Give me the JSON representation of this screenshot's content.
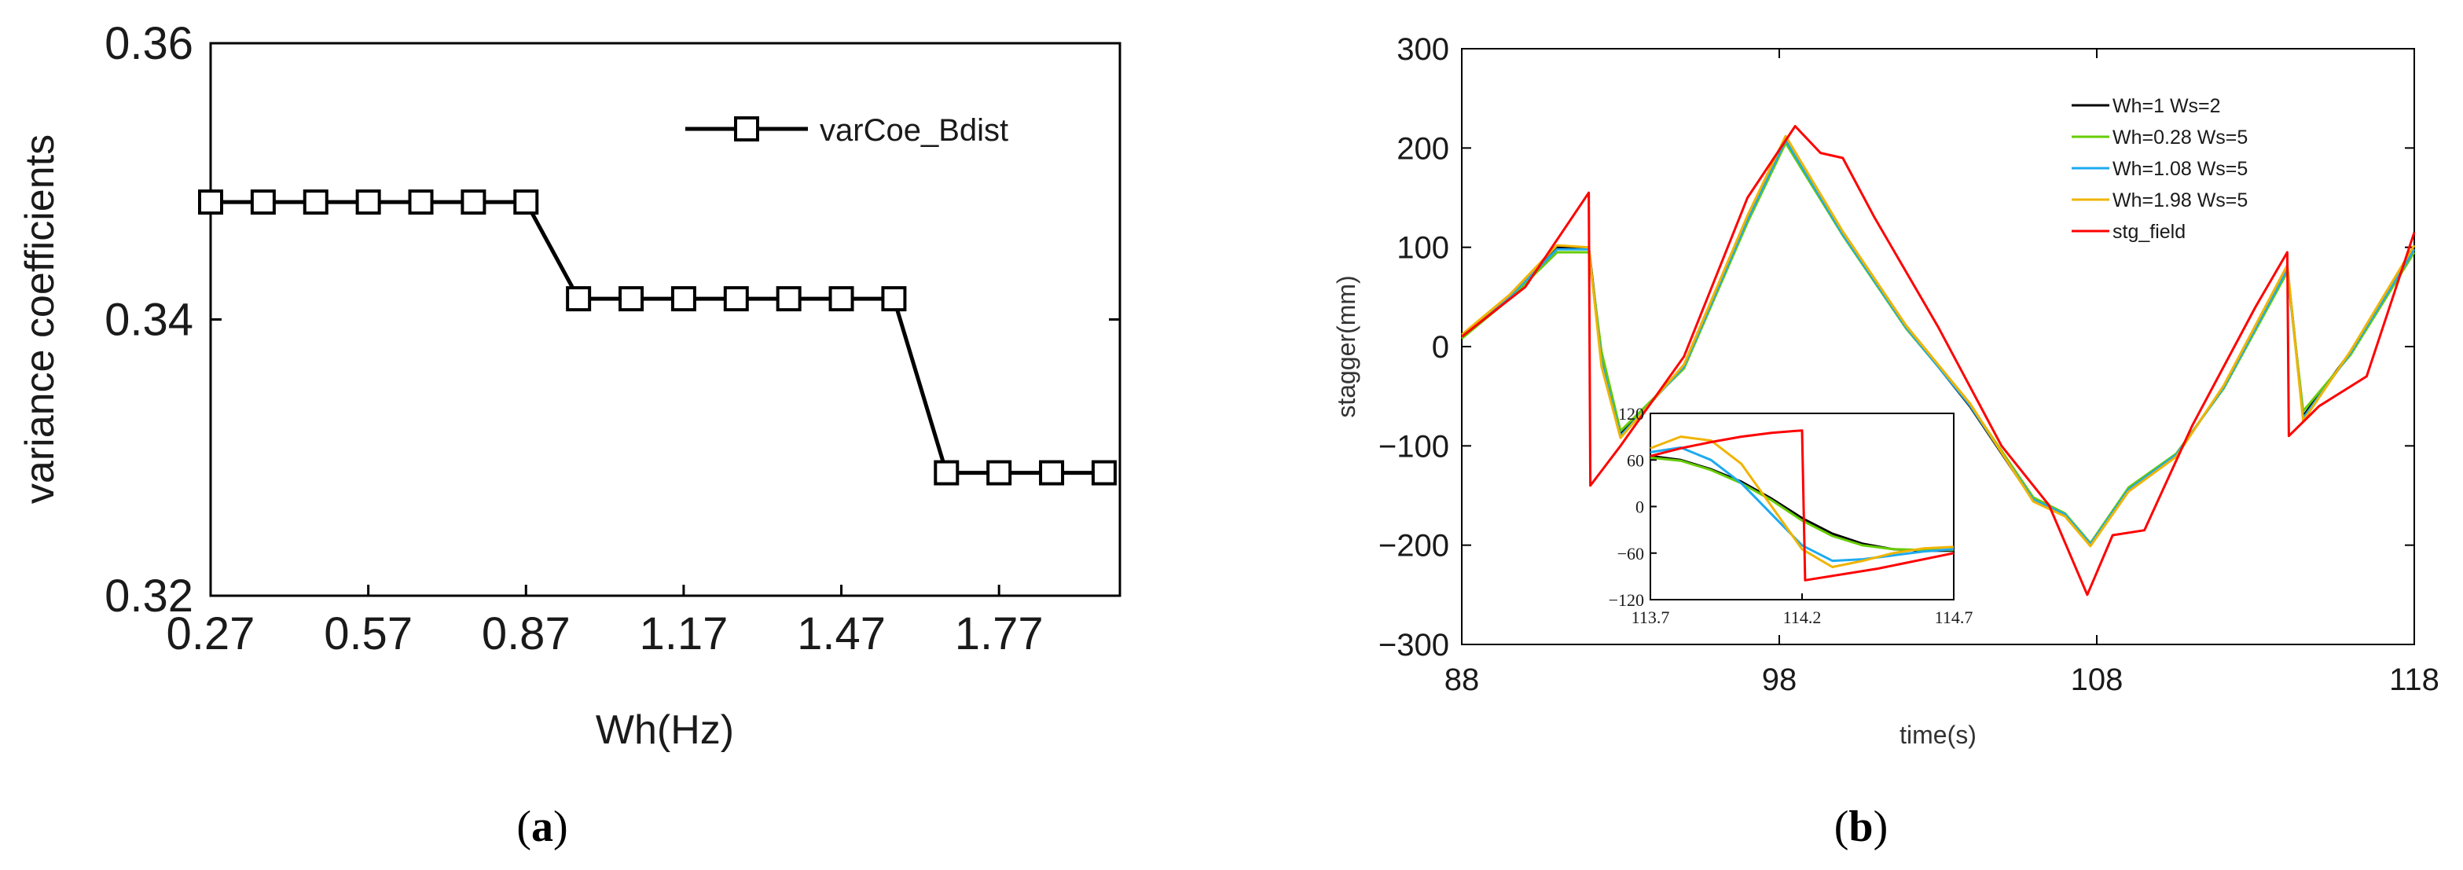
{
  "chart_data": [
    {
      "type": "line",
      "caption_open": "(",
      "caption_letter": "a",
      "caption_close": ")",
      "xlabel": "Wh(Hz)",
      "ylabel": "variance coefficients",
      "xlim": [
        0.27,
        2.0
      ],
      "ylim": [
        0.32,
        0.36
      ],
      "xticks": [
        "0.27",
        "0.57",
        "0.87",
        "1.17",
        "1.47",
        "1.77"
      ],
      "yticks": [
        "0.32",
        "0.34",
        "0.36"
      ],
      "legend_position": "top-right",
      "grid": false,
      "series": [
        {
          "name": "varCoe_Bdist",
          "color": "#000000",
          "marker": "square",
          "x": [
            0.27,
            0.37,
            0.47,
            0.57,
            0.67,
            0.77,
            0.87,
            0.97,
            1.07,
            1.17,
            1.27,
            1.37,
            1.47,
            1.57,
            1.67,
            1.77,
            1.87,
            1.97
          ],
          "y": [
            0.3485,
            0.3485,
            0.3485,
            0.3485,
            0.3485,
            0.3485,
            0.3485,
            0.3415,
            0.3415,
            0.3415,
            0.3415,
            0.3415,
            0.3415,
            0.3415,
            0.3289,
            0.3289,
            0.3289,
            0.3289
          ]
        }
      ]
    },
    {
      "type": "line",
      "caption_open": "(",
      "caption_letter": "b",
      "caption_close": ")",
      "xlabel": "time(s)",
      "ylabel": "stagger(mm)",
      "xlim": [
        88,
        118
      ],
      "ylim": [
        -300,
        300
      ],
      "xticks": [
        "88",
        "98",
        "108",
        "118"
      ],
      "yticks": [
        "300",
        "200",
        "100",
        "0",
        "−100",
        "−200",
        "−300"
      ],
      "legend_position": "top-right",
      "grid": false,
      "series": [
        {
          "name": "Wh=1 Ws=2",
          "color": "#000000",
          "x": [
            88,
            89.5,
            91,
            92,
            92.4,
            93,
            95,
            97,
            98.2,
            100,
            102,
            104,
            106,
            107,
            107.8,
            109,
            110.5,
            112,
            114,
            114.5,
            116,
            118
          ],
          "y": [
            10,
            50,
            100,
            100,
            -10,
            -88,
            -20,
            130,
            210,
            115,
            20,
            -60,
            -155,
            -170,
            -200,
            -145,
            -110,
            -40,
            80,
            -70,
            -5,
            100
          ]
        },
        {
          "name": "Wh=0.28 Ws=5",
          "color": "#66cc00",
          "x": [
            88,
            89.5,
            91,
            92,
            92.4,
            93,
            95,
            97,
            98.2,
            100,
            102,
            104,
            106,
            107,
            107.8,
            109,
            110.5,
            112,
            114,
            114.5,
            116,
            118
          ],
          "y": [
            8,
            48,
            95,
            95,
            -5,
            -85,
            -22,
            125,
            205,
            112,
            18,
            -58,
            -152,
            -168,
            -198,
            -142,
            -108,
            -42,
            75,
            -65,
            -8,
            95
          ]
        },
        {
          "name": "Wh=1.08 Ws=5",
          "color": "#1eaaf0",
          "x": [
            88,
            89.5,
            91,
            92,
            92.4,
            93,
            95,
            97,
            98.2,
            100,
            102,
            104,
            106,
            107,
            107.8,
            109,
            110.5,
            112,
            114,
            114.5,
            116,
            118
          ],
          "y": [
            10,
            50,
            98,
            98,
            -15,
            -90,
            -20,
            128,
            208,
            113,
            19,
            -59,
            -154,
            -169,
            -199,
            -144,
            -109,
            -41,
            78,
            -72,
            -6,
            98
          ]
        },
        {
          "name": "Wh=1.98 Ws=5",
          "color": "#f0b400",
          "x": [
            88,
            89.5,
            91,
            92,
            92.4,
            93,
            95,
            97,
            98.2,
            100,
            102,
            104,
            106,
            107,
            107.8,
            109,
            110.5,
            112,
            114,
            114.5,
            116,
            118
          ],
          "y": [
            12,
            52,
            102,
            100,
            -20,
            -92,
            -18,
            132,
            212,
            116,
            21,
            -57,
            -156,
            -171,
            -201,
            -146,
            -111,
            -39,
            82,
            -75,
            -4,
            102
          ]
        },
        {
          "name": "stg_field",
          "color": "#ff0000",
          "x": [
            88,
            90,
            92,
            92.05,
            93,
            95,
            97,
            98.5,
            99.3,
            100,
            101,
            103,
            105,
            106.5,
            107.7,
            108.5,
            109.5,
            111,
            113,
            114,
            114.05,
            115,
            116.5,
            118
          ],
          "y": [
            10,
            60,
            155,
            -140,
            -100,
            -10,
            150,
            222,
            195,
            190,
            130,
            20,
            -100,
            -160,
            -250,
            -190,
            -185,
            -80,
            40,
            95,
            -90,
            -60,
            -30,
            115
          ]
        }
      ],
      "inset": {
        "xlim": [
          113.7,
          114.7
        ],
        "ylim": [
          -120,
          120
        ],
        "xticks": [
          "113.7",
          "114.2",
          "114.7"
        ],
        "yticks": [
          "120",
          "60",
          "0",
          "−60",
          "−120"
        ],
        "series": [
          {
            "color": "#000000",
            "x": [
              113.7,
              113.8,
              113.9,
              114.0,
              114.1,
              114.2,
              114.3,
              114.4,
              114.5,
              114.6,
              114.7
            ],
            "y": [
              65,
              60,
              48,
              32,
              10,
              -15,
              -35,
              -48,
              -55,
              -57,
              -57
            ]
          },
          {
            "color": "#66cc00",
            "x": [
              113.7,
              113.8,
              113.9,
              114.0,
              114.1,
              114.2,
              114.3,
              114.4,
              114.5,
              114.6,
              114.7
            ],
            "y": [
              63,
              59,
              47,
              30,
              8,
              -18,
              -38,
              -50,
              -55,
              -56,
              -56
            ]
          },
          {
            "color": "#1eaaf0",
            "x": [
              113.7,
              113.8,
              113.9,
              114.0,
              114.1,
              114.2,
              114.3,
              114.4,
              114.5,
              114.6,
              114.7
            ],
            "y": [
              70,
              76,
              60,
              30,
              -10,
              -50,
              -70,
              -68,
              -63,
              -58,
              -55
            ]
          },
          {
            "color": "#f0b400",
            "x": [
              113.7,
              113.8,
              113.9,
              114.0,
              114.1,
              114.2,
              114.3,
              114.4,
              114.5,
              114.6,
              114.7
            ],
            "y": [
              75,
              90,
              85,
              55,
              0,
              -55,
              -78,
              -70,
              -60,
              -54,
              -52
            ]
          },
          {
            "color": "#ff0000",
            "x": [
              113.7,
              113.8,
              113.9,
              114.0,
              114.1,
              114.2,
              114.21,
              114.45,
              114.7
            ],
            "y": [
              65,
              75,
              83,
              90,
              95,
              98,
              -95,
              -80,
              -60
            ]
          }
        ]
      }
    }
  ]
}
